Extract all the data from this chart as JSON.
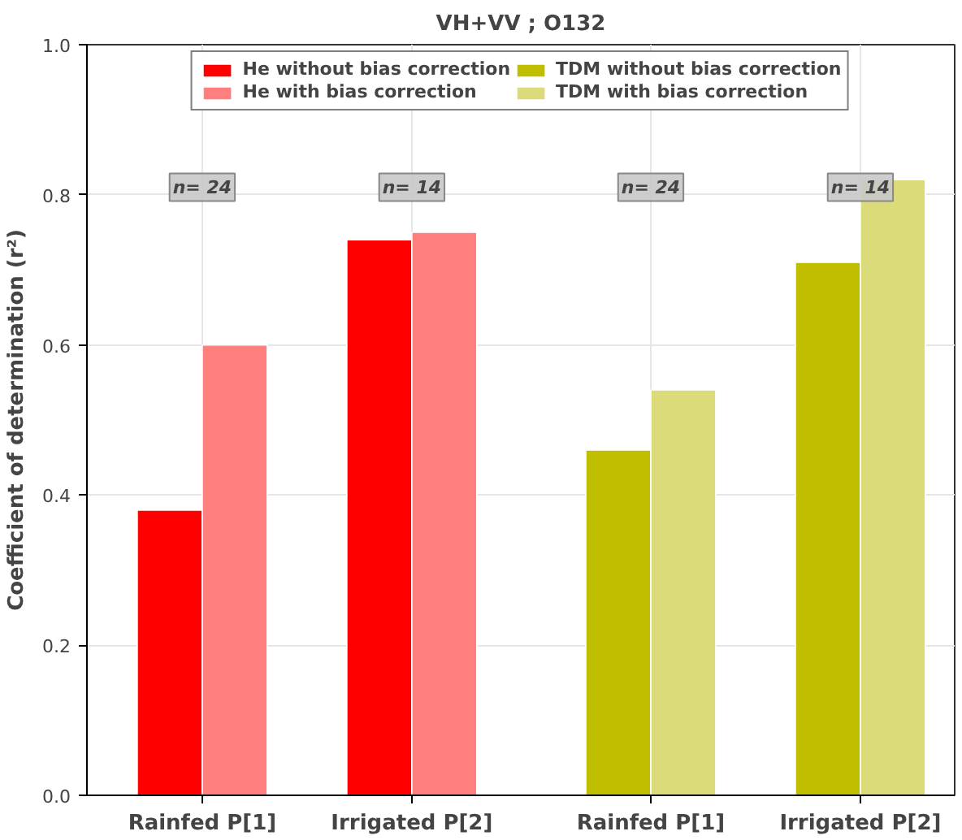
{
  "chart_data": {
    "type": "bar",
    "title": "VH+VV ; O132",
    "ylabel": "Coefficient of determination (r²)",
    "categories": [
      "Rainfed P[1]",
      "Irrigated P[2]",
      "Rainfed P[1]",
      "Irrigated P[2]"
    ],
    "series": [
      {
        "name": "He without bias correction",
        "color": "#ff0000",
        "values": [
          0.38,
          0.74,
          null,
          null
        ]
      },
      {
        "name": "He with bias correction",
        "color": "#ff7f7f",
        "values": [
          0.6,
          0.75,
          null,
          null
        ]
      },
      {
        "name": "TDM without bias correction",
        "color": "#bfbf00",
        "values": [
          null,
          null,
          0.46,
          0.71
        ]
      },
      {
        "name": "TDM with bias correction",
        "color": "#dbdb7a",
        "values": [
          null,
          null,
          0.54,
          0.82
        ]
      }
    ],
    "ylim": [
      0,
      1
    ],
    "yticks": [
      {
        "value": 0,
        "label": "0.0"
      },
      {
        "value": 0.2,
        "label": "0.2"
      },
      {
        "value": 0.4,
        "label": "0.4"
      },
      {
        "value": 0.6,
        "label": "0.6"
      },
      {
        "value": 0.8,
        "label": "0.8"
      },
      {
        "value": 1,
        "label": "1.0"
      }
    ],
    "annotations": [
      {
        "text": "n= 24",
        "y": 0.81
      },
      {
        "text": "n= 14",
        "y": 0.81
      },
      {
        "text": "n= 24",
        "y": 0.81
      },
      {
        "text": "n= 14",
        "y": 0.81
      }
    ],
    "grid": true,
    "legend": "top"
  }
}
